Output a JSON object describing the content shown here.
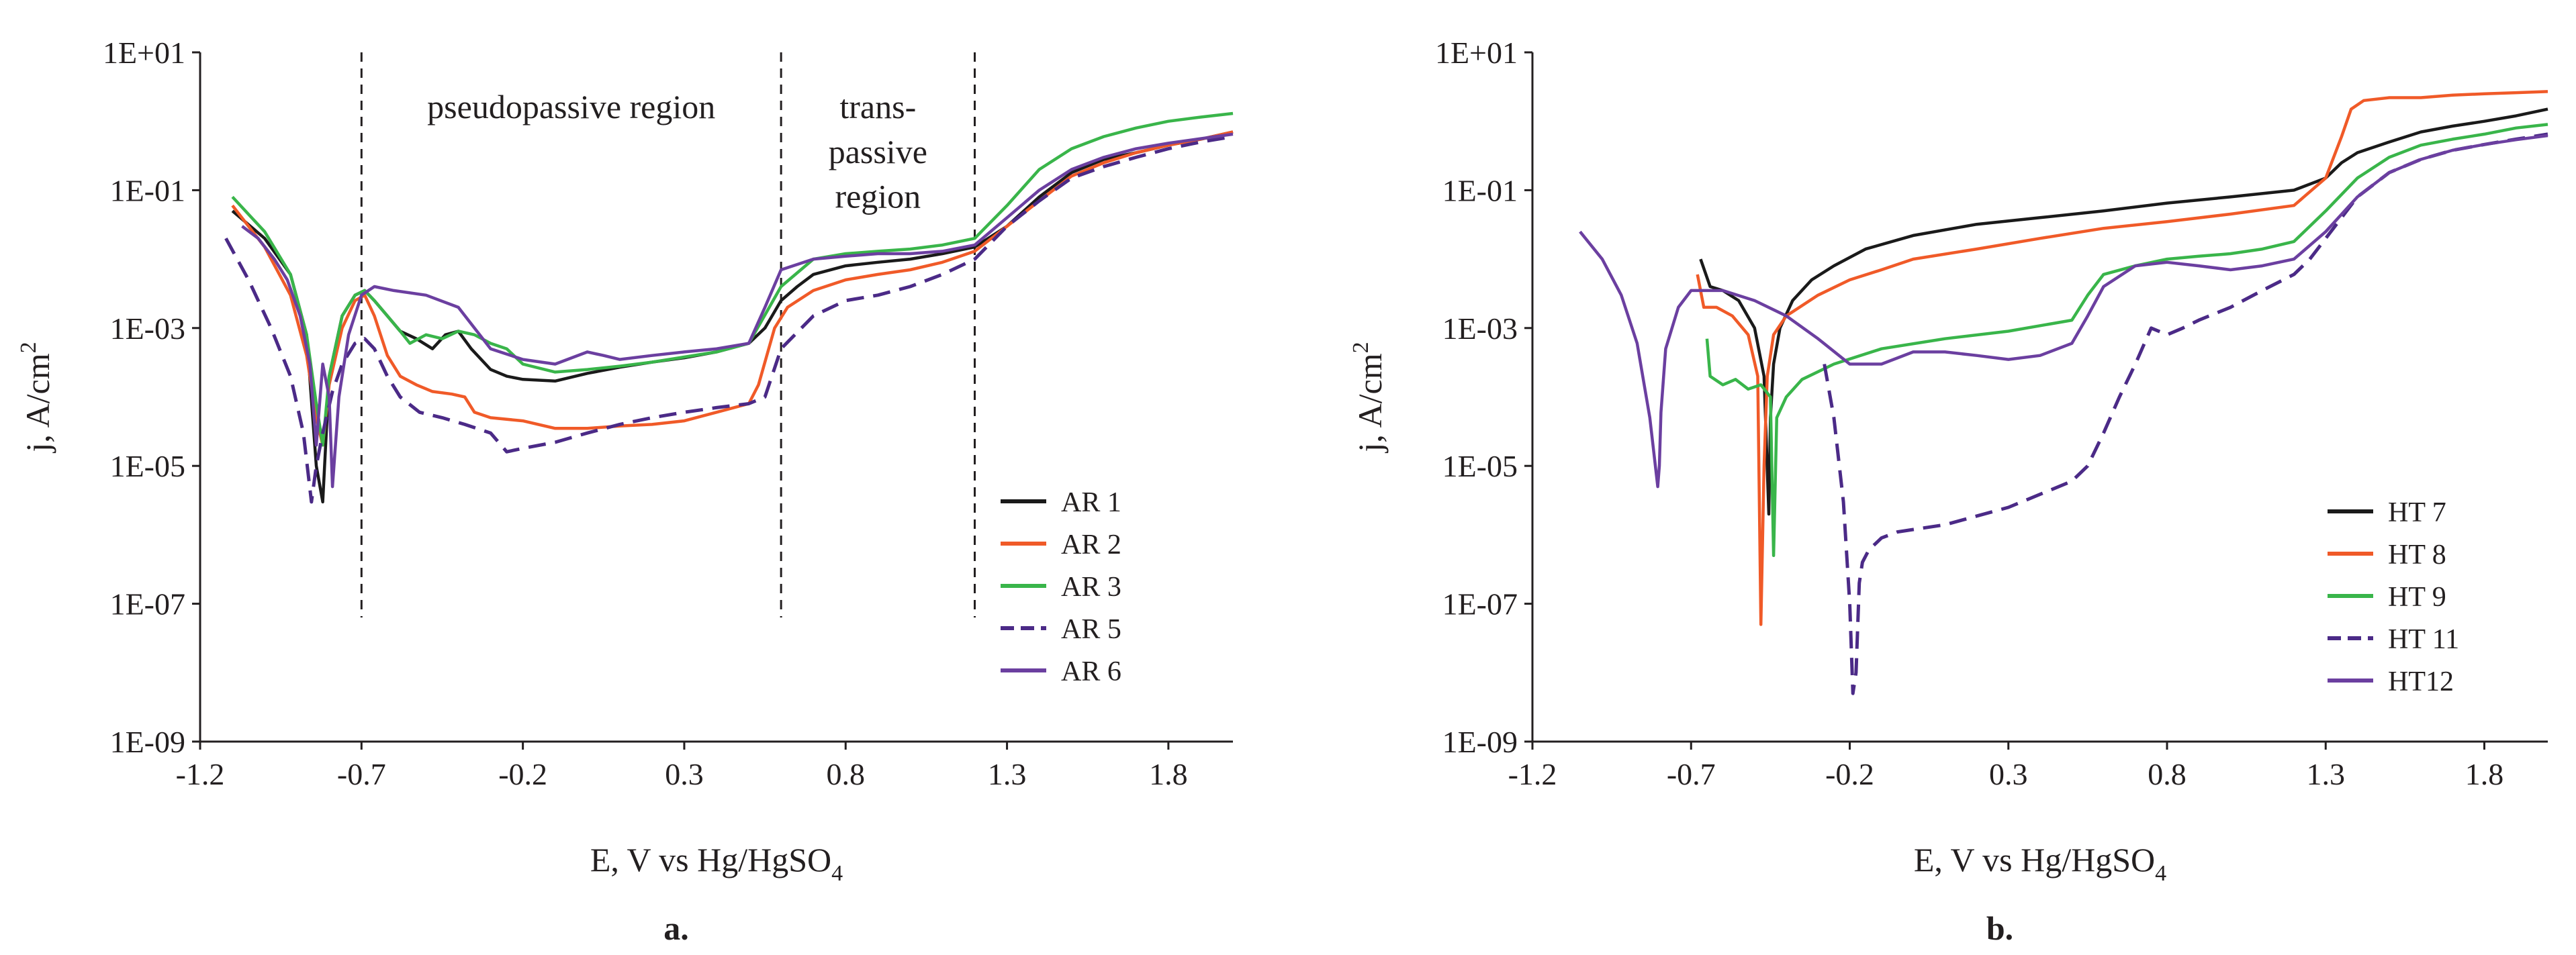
{
  "chart_data": [
    {
      "type": "line",
      "panel_label": "a.",
      "xlabel_main": "E, V vs Hg/HgSO",
      "xlabel_sub": "4",
      "ylabel_main": "j, A/cm",
      "ylabel_sup": "2",
      "x_ticks": [
        "-1.2",
        "-0.7",
        "-0.2",
        "0.3",
        "0.8",
        "1.3",
        "1.8"
      ],
      "y_ticks": [
        "1E-09",
        "1E-07",
        "1E-05",
        "1E-03",
        "1E-01",
        "1E+01"
      ],
      "xlim": [
        -1.2,
        2.0
      ],
      "ylim_log10": [
        -9,
        1
      ],
      "y_scale": "log",
      "grid": false,
      "legend_position": "bottom-right",
      "region_lines_x": [
        -0.7,
        0.6,
        1.2
      ],
      "annotations": [
        {
          "text": "pseudopassive region",
          "x": -0.05,
          "y_log10": 0.2
        },
        {
          "text": "trans-",
          "x": 0.9,
          "y_log10": 0.2
        },
        {
          "text": "passive",
          "x": 0.9,
          "y_log10": -0.45
        },
        {
          "text": "region",
          "x": 0.9,
          "y_log10": -1.1
        }
      ],
      "series": [
        {
          "name": "AR 1",
          "color": "#1a1a1a",
          "dash": false,
          "x": [
            -1.1,
            -1.0,
            -0.92,
            -0.87,
            -0.84,
            -0.82,
            -0.8,
            -0.76,
            -0.72,
            -0.69,
            -0.66,
            -0.62,
            -0.58,
            -0.53,
            -0.48,
            -0.44,
            -0.4,
            -0.36,
            -0.3,
            -0.25,
            -0.2,
            -0.1,
            0.0,
            0.1,
            0.2,
            0.3,
            0.4,
            0.5,
            0.55,
            0.6,
            0.65,
            0.7,
            0.8,
            0.9,
            1.0,
            1.1,
            1.2,
            1.3,
            1.4,
            1.5,
            1.6,
            1.7,
            1.8,
            1.9,
            2.0
          ],
          "y": [
            0.05,
            0.02,
            0.006,
            0.0008,
            1e-05,
            3e-06,
            0.0002,
            0.0015,
            0.003,
            0.0035,
            0.0025,
            0.0015,
            0.0009,
            0.0007,
            0.0005,
            0.0008,
            0.0009,
            0.0005,
            0.00025,
            0.0002,
            0.00018,
            0.00017,
            0.00022,
            0.00027,
            0.00032,
            0.00037,
            0.00045,
            0.0006,
            0.001,
            0.0025,
            0.004,
            0.006,
            0.008,
            0.009,
            0.01,
            0.012,
            0.015,
            0.03,
            0.08,
            0.18,
            0.28,
            0.35,
            0.45,
            0.55,
            0.7
          ]
        },
        {
          "name": "AR 2",
          "color": "#f05a28",
          "dash": false,
          "x": [
            -1.1,
            -1.0,
            -0.92,
            -0.87,
            -0.84,
            -0.82,
            -0.8,
            -0.76,
            -0.72,
            -0.69,
            -0.66,
            -0.62,
            -0.58,
            -0.53,
            -0.48,
            -0.42,
            -0.38,
            -0.35,
            -0.3,
            -0.2,
            -0.1,
            0.0,
            0.1,
            0.2,
            0.3,
            0.4,
            0.5,
            0.53,
            0.58,
            0.62,
            0.7,
            0.8,
            0.9,
            1.0,
            1.1,
            1.2,
            1.3,
            1.4,
            1.5,
            1.6,
            1.7,
            1.8,
            1.9,
            2.0
          ],
          "y": [
            0.06,
            0.015,
            0.003,
            0.0004,
            5e-05,
            2e-05,
            0.00015,
            0.001,
            0.0025,
            0.003,
            0.0015,
            0.0004,
            0.0002,
            0.00015,
            0.00012,
            0.00011,
            0.0001,
            6e-05,
            5e-05,
            4.5e-05,
            3.5e-05,
            3.5e-05,
            3.8e-05,
            4e-05,
            4.5e-05,
            6e-05,
            8e-05,
            0.00015,
            0.001,
            0.002,
            0.0035,
            0.005,
            0.006,
            0.007,
            0.009,
            0.013,
            0.03,
            0.07,
            0.16,
            0.25,
            0.35,
            0.45,
            0.55,
            0.7
          ]
        },
        {
          "name": "AR 3",
          "color": "#39b54a",
          "dash": false,
          "x": [
            -1.1,
            -1.0,
            -0.92,
            -0.87,
            -0.84,
            -0.82,
            -0.8,
            -0.76,
            -0.72,
            -0.69,
            -0.66,
            -0.62,
            -0.58,
            -0.55,
            -0.5,
            -0.45,
            -0.4,
            -0.35,
            -0.3,
            -0.25,
            -0.2,
            -0.1,
            0.0,
            0.1,
            0.2,
            0.3,
            0.4,
            0.5,
            0.6,
            0.7,
            0.8,
            0.9,
            1.0,
            1.1,
            1.2,
            1.3,
            1.4,
            1.5,
            1.6,
            1.7,
            1.8,
            1.9,
            2.0
          ],
          "y": [
            0.08,
            0.025,
            0.006,
            0.0008,
            8e-05,
            2e-05,
            0.0002,
            0.0015,
            0.003,
            0.0035,
            0.0025,
            0.0015,
            0.0009,
            0.0006,
            0.0008,
            0.0007,
            0.0009,
            0.0008,
            0.0006,
            0.0005,
            0.0003,
            0.00023,
            0.00025,
            0.00028,
            0.00032,
            0.00038,
            0.00045,
            0.0006,
            0.004,
            0.01,
            0.012,
            0.013,
            0.014,
            0.016,
            0.02,
            0.06,
            0.2,
            0.4,
            0.6,
            0.8,
            1.0,
            1.15,
            1.3
          ]
        },
        {
          "name": "AR 5",
          "color": "#4b2a87",
          "dash": true,
          "x": [
            -1.12,
            -1.05,
            -0.98,
            -0.92,
            -0.88,
            -0.855,
            -0.84,
            -0.82,
            -0.79,
            -0.76,
            -0.72,
            -0.69,
            -0.66,
            -0.62,
            -0.58,
            -0.52,
            -0.45,
            -0.38,
            -0.3,
            -0.25,
            -0.2,
            -0.1,
            0.0,
            0.1,
            0.2,
            0.3,
            0.4,
            0.5,
            0.55,
            0.6,
            0.7,
            0.8,
            0.9,
            1.0,
            1.1,
            1.2,
            1.3,
            1.4,
            1.5,
            1.6,
            1.7,
            1.8,
            1.9,
            2.0
          ],
          "y": [
            0.02,
            0.005,
            0.001,
            0.0002,
            3e-05,
            3e-06,
            1e-05,
            3e-05,
            0.00012,
            0.0003,
            0.0006,
            0.0007,
            0.0005,
            0.0002,
            0.0001,
            6e-05,
            5e-05,
            4e-05,
            3e-05,
            1.6e-05,
            1.8e-05,
            2.2e-05,
            3e-05,
            4e-05,
            5e-05,
            6e-05,
            7e-05,
            8e-05,
            0.0001,
            0.0005,
            0.0015,
            0.0025,
            0.003,
            0.004,
            0.006,
            0.01,
            0.03,
            0.07,
            0.15,
            0.22,
            0.3,
            0.4,
            0.5,
            0.6
          ]
        },
        {
          "name": "AR 6",
          "color": "#6b3fa0",
          "dash": false,
          "x": [
            -1.07,
            -1.02,
            -0.97,
            -0.93,
            -0.89,
            -0.86,
            -0.84,
            -0.82,
            -0.8,
            -0.79,
            -0.77,
            -0.74,
            -0.7,
            -0.66,
            -0.6,
            -0.5,
            -0.4,
            -0.35,
            -0.3,
            -0.2,
            -0.1,
            0.0,
            0.05,
            0.1,
            0.2,
            0.3,
            0.4,
            0.5,
            0.55,
            0.6,
            0.7,
            0.8,
            0.9,
            1.0,
            1.1,
            1.2,
            1.3,
            1.4,
            1.5,
            1.6,
            1.7,
            1.8,
            1.9,
            2.0
          ],
          "y": [
            0.03,
            0.02,
            0.01,
            0.005,
            0.0015,
            0.0003,
            2e-05,
            0.0003,
            0.0001,
            5e-06,
            0.0001,
            0.0008,
            0.003,
            0.004,
            0.0035,
            0.003,
            0.002,
            0.001,
            0.0005,
            0.00035,
            0.0003,
            0.00045,
            0.0004,
            0.00035,
            0.0004,
            0.00045,
            0.0005,
            0.0006,
            0.002,
            0.007,
            0.01,
            0.011,
            0.012,
            0.012,
            0.013,
            0.016,
            0.04,
            0.1,
            0.2,
            0.3,
            0.4,
            0.48,
            0.56,
            0.65
          ]
        }
      ]
    },
    {
      "type": "line",
      "panel_label": "b.",
      "xlabel_main": "E, V vs Hg/HgSO",
      "xlabel_sub": "4",
      "ylabel_main": "j, A/cm",
      "ylabel_sup": "2",
      "x_ticks": [
        "-1.2",
        "-0.7",
        "-0.2",
        "0.3",
        "0.8",
        "1.3",
        "1.8"
      ],
      "y_ticks": [
        "1E-09",
        "1E-07",
        "1E-05",
        "1E-03",
        "1E-01",
        "1E+01"
      ],
      "xlim": [
        -1.2,
        2.0
      ],
      "ylim_log10": [
        -9,
        1
      ],
      "y_scale": "log",
      "grid": false,
      "legend_position": "bottom-right",
      "series": [
        {
          "name": "HT 7",
          "color": "#1a1a1a",
          "dash": false,
          "x": [
            -0.67,
            -0.64,
            -0.6,
            -0.55,
            -0.5,
            -0.47,
            -0.455,
            -0.45,
            -0.44,
            -0.42,
            -0.38,
            -0.32,
            -0.25,
            -0.15,
            0.0,
            0.2,
            0.4,
            0.6,
            0.8,
            1.0,
            1.2,
            1.3,
            1.35,
            1.4,
            1.5,
            1.6,
            1.7,
            1.8,
            1.9,
            2.0
          ],
          "y": [
            0.01,
            0.004,
            0.0035,
            0.0025,
            0.001,
            0.0002,
            2e-06,
            5e-05,
            0.0003,
            0.001,
            0.0025,
            0.005,
            0.008,
            0.014,
            0.022,
            0.032,
            0.04,
            0.05,
            0.065,
            0.08,
            0.1,
            0.15,
            0.25,
            0.35,
            0.5,
            0.7,
            0.85,
            1.0,
            1.2,
            1.5
          ]
        },
        {
          "name": "HT 8",
          "color": "#f05a28",
          "dash": false,
          "x": [
            -0.68,
            -0.66,
            -0.62,
            -0.57,
            -0.52,
            -0.49,
            -0.48,
            -0.47,
            -0.46,
            -0.44,
            -0.4,
            -0.3,
            -0.2,
            -0.1,
            0.0,
            0.2,
            0.4,
            0.6,
            0.8,
            1.0,
            1.2,
            1.3,
            1.35,
            1.38,
            1.42,
            1.5,
            1.6,
            1.7,
            1.8,
            1.9,
            2.0
          ],
          "y": [
            0.006,
            0.002,
            0.002,
            0.0015,
            0.0008,
            0.0002,
            5e-08,
            1e-05,
            0.0002,
            0.0008,
            0.0015,
            0.003,
            0.005,
            0.007,
            0.01,
            0.014,
            0.02,
            0.028,
            0.035,
            0.045,
            0.06,
            0.15,
            0.6,
            1.5,
            2.0,
            2.2,
            2.2,
            2.4,
            2.5,
            2.6,
            2.7
          ]
        },
        {
          "name": "HT 9",
          "color": "#39b54a",
          "dash": false,
          "x": [
            -0.65,
            -0.64,
            -0.6,
            -0.56,
            -0.52,
            -0.48,
            -0.45,
            -0.44,
            -0.43,
            -0.4,
            -0.35,
            -0.25,
            -0.1,
            0.1,
            0.3,
            0.5,
            0.55,
            0.6,
            0.7,
            0.8,
            0.9,
            1.0,
            1.1,
            1.2,
            1.3,
            1.4,
            1.5,
            1.6,
            1.7,
            1.8,
            1.9,
            2.0
          ],
          "y": [
            0.0007,
            0.0002,
            0.00015,
            0.00018,
            0.00013,
            0.00015,
            0.0001,
            5e-07,
            5e-05,
            0.0001,
            0.00018,
            0.0003,
            0.0005,
            0.0007,
            0.0009,
            0.0013,
            0.003,
            0.006,
            0.008,
            0.01,
            0.011,
            0.012,
            0.014,
            0.018,
            0.05,
            0.15,
            0.3,
            0.45,
            0.55,
            0.65,
            0.8,
            0.9
          ]
        },
        {
          "name": "HT 11",
          "color": "#4b2a87",
          "dash": true,
          "x": [
            -0.28,
            -0.25,
            -0.22,
            -0.2,
            -0.19,
            -0.18,
            -0.17,
            -0.16,
            -0.14,
            -0.1,
            -0.05,
            0.1,
            0.3,
            0.5,
            0.55,
            0.6,
            0.65,
            0.7,
            0.75,
            0.8,
            0.85,
            0.9,
            1.0,
            1.1,
            1.2,
            1.25,
            1.3,
            1.4,
            1.5,
            1.6,
            1.7,
            1.8,
            1.9,
            2.0
          ],
          "y": [
            0.0003,
            5e-05,
            3e-06,
            1e-07,
            5e-09,
            1e-08,
            2e-07,
            4e-07,
            6e-07,
            9e-07,
            1.1e-06,
            1.4e-06,
            2.5e-06,
            6e-06,
            1e-05,
            3e-05,
            0.0001,
            0.0003,
            0.001,
            0.0008,
            0.001,
            0.0013,
            0.002,
            0.0035,
            0.006,
            0.01,
            0.02,
            0.08,
            0.18,
            0.28,
            0.38,
            0.46,
            0.55,
            0.65
          ]
        },
        {
          "name": "HT12",
          "color": "#6b3fa0",
          "dash": false,
          "x": [
            -1.05,
            -0.98,
            -0.92,
            -0.87,
            -0.83,
            -0.805,
            -0.8,
            -0.795,
            -0.78,
            -0.74,
            -0.7,
            -0.6,
            -0.5,
            -0.4,
            -0.3,
            -0.2,
            -0.1,
            0.0,
            0.1,
            0.2,
            0.3,
            0.4,
            0.5,
            0.55,
            0.6,
            0.7,
            0.8,
            0.9,
            1.0,
            1.1,
            1.2,
            1.3,
            1.4,
            1.5,
            1.6,
            1.7,
            1.8,
            1.9,
            2.0
          ],
          "y": [
            0.025,
            0.01,
            0.003,
            0.0006,
            5e-05,
            5e-06,
            1e-05,
            6e-05,
            0.0005,
            0.002,
            0.0035,
            0.0035,
            0.0025,
            0.0015,
            0.0007,
            0.0003,
            0.0003,
            0.00045,
            0.00045,
            0.0004,
            0.00035,
            0.0004,
            0.0006,
            0.0015,
            0.004,
            0.008,
            0.009,
            0.008,
            0.007,
            0.008,
            0.01,
            0.025,
            0.08,
            0.18,
            0.28,
            0.38,
            0.46,
            0.54,
            0.62
          ]
        }
      ]
    }
  ]
}
